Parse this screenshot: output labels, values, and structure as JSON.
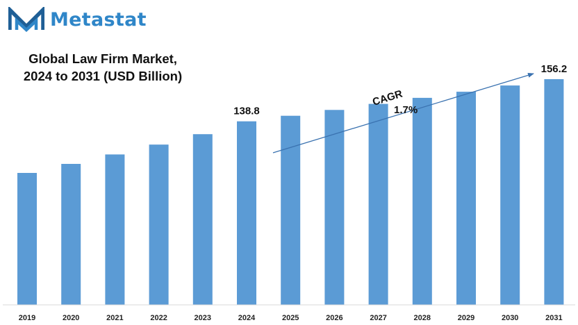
{
  "brand": {
    "name": "Metastat",
    "logo_color": "#1f5f96",
    "text_color": "#2f86c8"
  },
  "chart_data": {
    "type": "bar",
    "title_lines": [
      "Global Law Firm Market,",
      "2024 to 2031 (USD Billion)"
    ],
    "categories": [
      "2019",
      "2020",
      "2021",
      "2022",
      "2023",
      "2024",
      "2025",
      "2026",
      "2027",
      "2028",
      "2029",
      "2030",
      "2031"
    ],
    "values": [
      117.5,
      121.2,
      125.1,
      129.2,
      133.5,
      138.8,
      141.1,
      143.5,
      146.0,
      148.5,
      151.0,
      153.6,
      156.2
    ],
    "data_labels": [
      {
        "category": "2024",
        "text": "138.8"
      },
      {
        "category": "2031",
        "text": "156.2"
      }
    ],
    "annotation": {
      "label": "CAGR",
      "value": "1.7%"
    },
    "bar_color": "#5b9bd5",
    "axis_color": "#d9d9d9",
    "xlabel": "",
    "ylabel": "",
    "ylim": [
      63,
      165
    ],
    "grid": false,
    "legend": false
  }
}
